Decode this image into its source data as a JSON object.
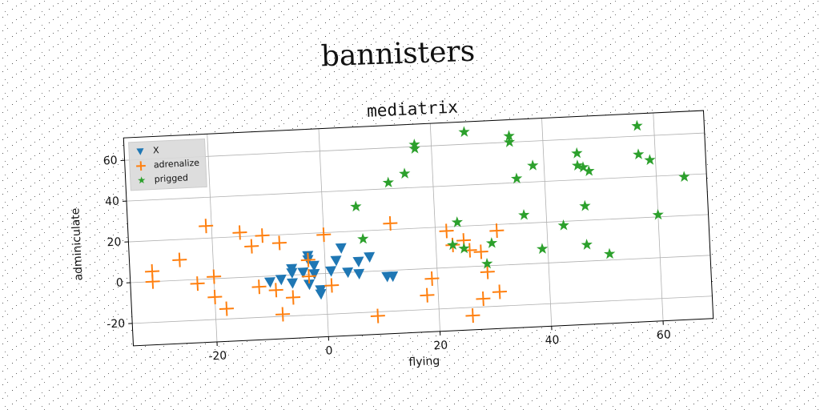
{
  "chart_data": {
    "type": "scatter",
    "page_title": "bannisters",
    "title": "mediatrix",
    "xlabel": "flying",
    "ylabel": "adminiculate",
    "xlim": [
      -35,
      69
    ],
    "ylim": [
      -31,
      71
    ],
    "xticks": [
      -20,
      0,
      20,
      40,
      60
    ],
    "yticks": [
      -20,
      0,
      20,
      40,
      60
    ],
    "grid": true,
    "legend": "upper left",
    "series": [
      {
        "name": "X",
        "color": "#1f77b4",
        "marker": "triangle-down",
        "x": [
          -10,
          -8,
          -6,
          -6,
          -3,
          -3,
          -2,
          -2,
          -3,
          -1,
          -1,
          1,
          3,
          4,
          6,
          8,
          6,
          11,
          12,
          2,
          -4,
          -6
        ],
        "values": [
          -3,
          -2,
          3,
          1,
          7,
          9,
          4,
          0,
          -5,
          -10,
          -8,
          1,
          12,
          0,
          5,
          7,
          -1,
          -3,
          -3,
          6,
          1,
          -4
        ]
      },
      {
        "name": "adrenalize",
        "color": "#ff7f0e",
        "marker": "plus",
        "x": [
          -31,
          -31,
          -26,
          -23,
          -21,
          -20,
          -20,
          -18,
          -15,
          -13,
          -12,
          -11,
          -9,
          -8,
          -8,
          -6,
          -3,
          -3,
          0,
          1,
          9,
          12,
          18,
          19,
          22,
          23,
          25,
          26,
          26,
          28,
          29,
          31,
          31,
          28
        ],
        "values": [
          5,
          0,
          10,
          -2,
          26,
          1,
          -9,
          -15,
          22,
          15,
          -5,
          20,
          -7,
          16,
          -19,
          -11,
          -1,
          7,
          19,
          -6,
          -22,
          23,
          -13,
          -5,
          18,
          11,
          13,
          8,
          -24,
          -16,
          -3,
          17,
          -13,
          7
        ]
      },
      {
        "name": "prigged",
        "color": "#2ca02c",
        "marker": "star",
        "x": [
          6,
          7,
          12,
          15,
          17,
          17,
          26,
          24,
          23,
          25,
          30,
          29,
          35,
          36,
          38,
          34,
          34,
          39,
          43,
          46,
          46,
          47,
          48,
          47,
          47,
          51,
          57,
          57,
          59,
          60,
          65
        ],
        "values": [
          32,
          16,
          43,
          47,
          59,
          61,
          66,
          22,
          11,
          9,
          11,
          1,
          42,
          24,
          48,
          63,
          60,
          7,
          18,
          53,
          47,
          46,
          44,
          27,
          8,
          3,
          65,
          51,
          48,
          21,
          39
        ]
      }
    ]
  }
}
